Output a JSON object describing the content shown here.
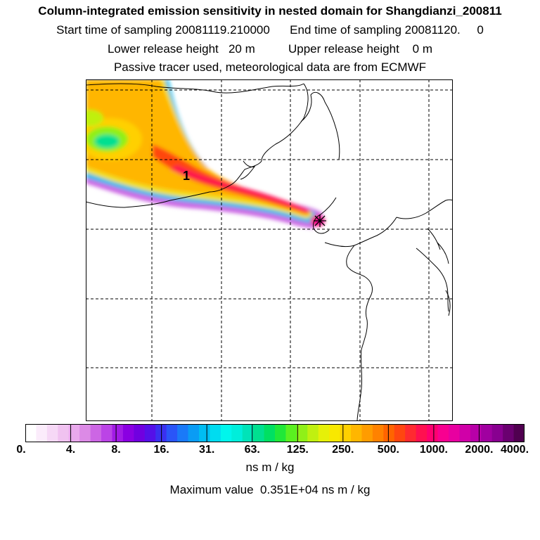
{
  "header": {
    "title": "Column-integrated emission sensitivity in nested domain for Shangdianzi_200811",
    "line2": "Start time of sampling 20081119.210000      End time of sampling 20081120.     0",
    "line3": "Lower release height   20 m          Upper release height    0 m",
    "line4": "Passive tracer used, meteorological data are from ECMWF"
  },
  "map": {
    "label_1": "1",
    "station_marker": "release-site-star-icon"
  },
  "chart_data": {
    "type": "heatmap",
    "title": "Column-integrated emission sensitivity in nested domain for Shangdianzi_200811",
    "colorbar": {
      "ticks": [
        "0.",
        "4.",
        "8.",
        "16.",
        "31.",
        "63.",
        "125.",
        "250.",
        "500.",
        "1000.",
        "2000.",
        "4000."
      ],
      "units": "ns m / kg",
      "scale": "logarithmic"
    },
    "maximum_value": "Maximum value  0.351E+04 ns m / kg",
    "grid": true
  },
  "colors": {
    "colorbar": [
      "#ffffff",
      "#fbecfb",
      "#f6d8f6",
      "#f0c2f0",
      "#e9a9ec",
      "#dc8ae6",
      "#cc66e4",
      "#bb44e6",
      "#a21be6",
      "#8a00e2",
      "#7000e0",
      "#5510e8",
      "#3a30f0",
      "#2a55f8",
      "#1a7af8",
      "#0a9cf4",
      "#00bdf2",
      "#00dcf0",
      "#00f6ec",
      "#00eedb",
      "#00e3b8",
      "#00e090",
      "#00e062",
      "#20e838",
      "#5af020",
      "#90f018",
      "#c0f010",
      "#e6f008",
      "#f8e800",
      "#ffd000",
      "#ffb600",
      "#ff9c00",
      "#ff8200",
      "#ff6400",
      "#ff4610",
      "#ff2a30",
      "#ff1050",
      "#ff0070",
      "#f80090",
      "#e800a0",
      "#d000a8",
      "#b800a8",
      "#a000a0",
      "#880090",
      "#6a0070",
      "#500050"
    ]
  }
}
